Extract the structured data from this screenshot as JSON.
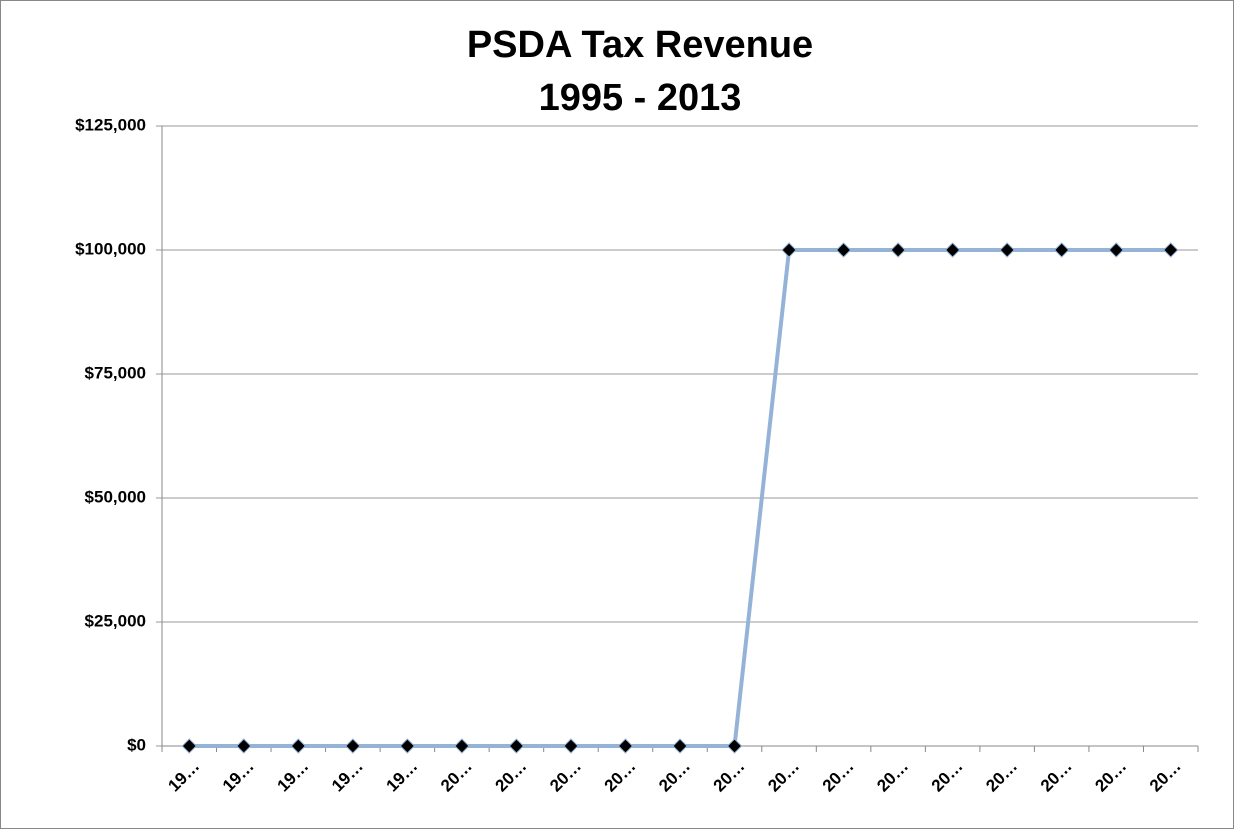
{
  "chart_data": {
    "type": "line",
    "title": "PSDA Tax Revenue",
    "subtitle": "1995 - 2013",
    "categories": [
      "19…",
      "19…",
      "19…",
      "19…",
      "19…",
      "20…",
      "20…",
      "20…",
      "20…",
      "20…",
      "20…",
      "20…",
      "20…",
      "20…",
      "20…",
      "20…",
      "20…",
      "20…",
      "20…"
    ],
    "series": [
      {
        "name": "PSDA Tax Revenue",
        "color": "#95b3d7",
        "marker_color": "#000000",
        "values": [
          0,
          0,
          0,
          0,
          0,
          0,
          0,
          0,
          0,
          0,
          0,
          100000,
          100000,
          100000,
          100000,
          100000,
          100000,
          100000,
          100000
        ]
      }
    ],
    "ylim": [
      0,
      125000
    ],
    "yticks": [
      {
        "value": 0,
        "label": "$0"
      },
      {
        "value": 25000,
        "label": "$25,000"
      },
      {
        "value": 50000,
        "label": "$50,000"
      },
      {
        "value": 75000,
        "label": "$75,000"
      },
      {
        "value": 100000,
        "label": "$100,000"
      },
      {
        "value": 125000,
        "label": "$125,000"
      }
    ],
    "grid": true
  }
}
